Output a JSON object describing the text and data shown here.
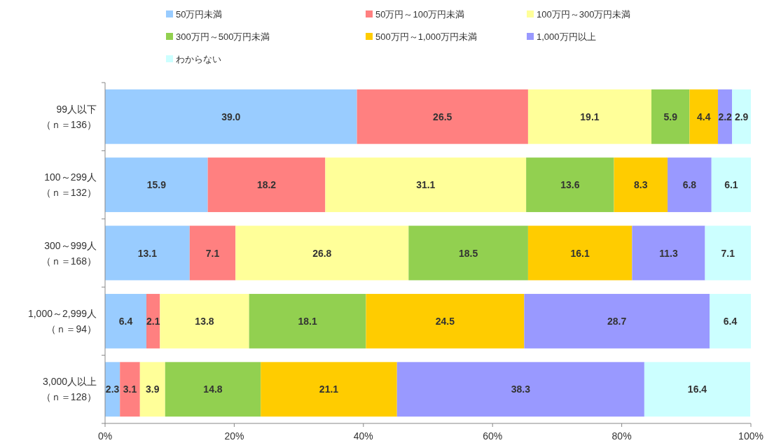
{
  "chart_data": {
    "type": "bar",
    "orientation": "horizontal",
    "stacked": true,
    "categories": [
      "99人以下（ｎ＝136）",
      "100～299人（ｎ＝132）",
      "300～999人（ｎ＝168）",
      "1,000～2,999人（ｎ＝94）",
      "3,000人以上（ｎ＝128）"
    ],
    "series": [
      {
        "name": "50万円未満",
        "color": "#99ccff",
        "values": [
          39.0,
          15.9,
          13.1,
          6.4,
          2.3
        ],
        "value_labels": [
          "39.0",
          "15.9",
          "13.1",
          "6.4",
          "2.3"
        ]
      },
      {
        "name": "50万円～100万円未満",
        "color": "#ff8080",
        "values": [
          26.5,
          18.2,
          7.1,
          2.1,
          3.1
        ],
        "value_labels": [
          "26.5",
          "18.2",
          "7.1",
          "2.1",
          "3.1"
        ]
      },
      {
        "name": "100万円～300万円未満",
        "color": "#ffff99",
        "values": [
          19.1,
          31.1,
          26.8,
          13.8,
          3.9
        ],
        "value_labels": [
          "19.1",
          "31.1",
          "26.8",
          "13.8",
          "3.9"
        ]
      },
      {
        "name": "300万円～500万円未満",
        "color": "#92d050",
        "values": [
          5.9,
          13.6,
          18.5,
          18.1,
          14.8
        ],
        "value_labels": [
          "5.9",
          "13.6",
          "18.5",
          "18.1",
          "14.8"
        ]
      },
      {
        "name": "500万円～1,000万円未満",
        "color": "#ffcc00",
        "values": [
          4.4,
          8.3,
          16.1,
          24.5,
          21.1
        ],
        "value_labels": [
          "4.4",
          "8.3",
          "16.1",
          "24.5",
          "21.1"
        ]
      },
      {
        "name": "1,000万円以上",
        "color": "#9999ff",
        "values": [
          2.2,
          6.8,
          11.3,
          28.7,
          38.3
        ],
        "value_labels": [
          "2.2",
          "6.8",
          "11.3",
          "28.7",
          "38.3"
        ]
      },
      {
        "name": "わからない",
        "color": "#ccffff",
        "values": [
          2.9,
          6.1,
          7.1,
          6.4,
          16.4
        ],
        "value_labels": [
          "2.9",
          "6.1",
          "7.1",
          "6.4",
          "16.4"
        ]
      }
    ],
    "xlim": [
      0,
      100
    ],
    "xticks": [
      {
        "value": 0,
        "label": "0%"
      },
      {
        "value": 20,
        "label": "20%"
      },
      {
        "value": 40,
        "label": "40%"
      },
      {
        "value": 60,
        "label": "60%"
      },
      {
        "value": 80,
        "label": "80%"
      },
      {
        "value": 100,
        "label": "100%"
      }
    ],
    "legend": "top"
  }
}
